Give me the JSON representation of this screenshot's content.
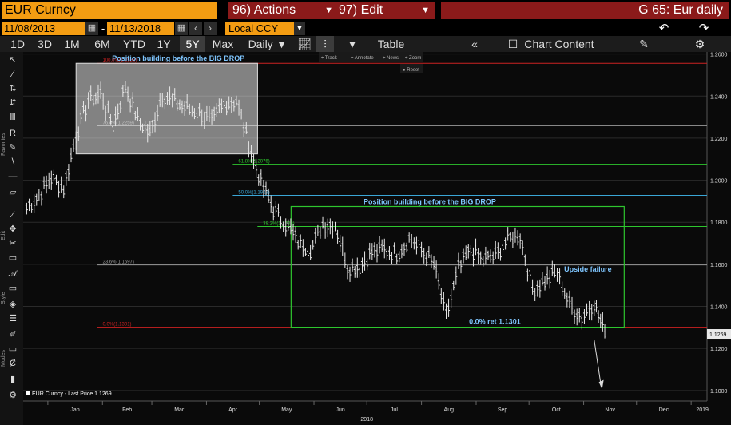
{
  "header": {
    "ticker": "EUR Curncy",
    "actions_label": "96) Actions",
    "edit_label": "97) Edit",
    "title": "G 65: Eur daily"
  },
  "range": {
    "start": "11/08/2013",
    "separator": "-",
    "end": "11/13/2018",
    "currency": "Local CCY"
  },
  "toolbar": {
    "periods": [
      "1D",
      "3D",
      "1M",
      "6M",
      "YTD",
      "1Y",
      "5Y",
      "Max"
    ],
    "selected_period": "5Y",
    "frequency": "Daily",
    "table_label": "Table",
    "chart_content_label": "Chart Content"
  },
  "overlay_toolbar": {
    "items": [
      "Track",
      "Annotate",
      "News",
      "Zoom"
    ],
    "reset_label": "Reset"
  },
  "sidebar_sections": [
    "Favorites",
    "Edit",
    "Style",
    "Modes"
  ],
  "legend_label": "EUR Curncy - Last Price 1.1269",
  "colors": {
    "background": "#0a0a0a",
    "accent_orange": "#f39c12",
    "action_red": "#8b1a1a",
    "annotation_blue": "#7fc6ff",
    "fib_green": "#2ec62e",
    "fib_red": "#cc2222",
    "fib_blue": "#3aa6d6"
  },
  "chart_data": {
    "type": "line",
    "title": "",
    "xlabel": "2018",
    "ylabel": "",
    "x_ticks": [
      "Jan",
      "Feb",
      "Mar",
      "Apr",
      "May",
      "Jun",
      "Jul",
      "Aug",
      "Sep",
      "Oct",
      "Nov",
      "Dec",
      "2019"
    ],
    "y_ticks": [
      1.26,
      1.24,
      1.22,
      1.2,
      1.18,
      1.16,
      1.14,
      1.12,
      1.1
    ],
    "ylim": [
      1.095,
      1.261
    ],
    "series": [
      {
        "name": "EUR Curncy - Last Price",
        "points": [
          [
            "2017-12-20",
            1.187
          ],
          [
            "2017-12-27",
            1.193
          ],
          [
            "2018-01-03",
            1.201
          ],
          [
            "2018-01-10",
            1.196
          ],
          [
            "2018-01-17",
            1.221
          ],
          [
            "2018-01-24",
            1.238
          ],
          [
            "2018-01-31",
            1.241
          ],
          [
            "2018-02-07",
            1.226
          ],
          [
            "2018-02-14",
            1.245
          ],
          [
            "2018-02-21",
            1.229
          ],
          [
            "2018-02-28",
            1.222
          ],
          [
            "2018-03-07",
            1.241
          ],
          [
            "2018-03-14",
            1.237
          ],
          [
            "2018-03-21",
            1.234
          ],
          [
            "2018-03-28",
            1.232
          ],
          [
            "2018-04-04",
            1.228
          ],
          [
            "2018-04-11",
            1.236
          ],
          [
            "2018-04-18",
            1.238
          ],
          [
            "2018-04-25",
            1.217
          ],
          [
            "2018-05-02",
            1.199
          ],
          [
            "2018-05-09",
            1.186
          ],
          [
            "2018-05-16",
            1.179
          ],
          [
            "2018-05-23",
            1.171
          ],
          [
            "2018-05-30",
            1.167
          ],
          [
            "2018-06-06",
            1.179
          ],
          [
            "2018-06-13",
            1.179
          ],
          [
            "2018-06-20",
            1.159
          ],
          [
            "2018-06-27",
            1.159
          ],
          [
            "2018-07-04",
            1.166
          ],
          [
            "2018-07-11",
            1.167
          ],
          [
            "2018-07-18",
            1.165
          ],
          [
            "2018-07-25",
            1.172
          ],
          [
            "2018-08-01",
            1.167
          ],
          [
            "2018-08-08",
            1.16
          ],
          [
            "2018-08-15",
            1.135
          ],
          [
            "2018-08-22",
            1.158
          ],
          [
            "2018-08-29",
            1.167
          ],
          [
            "2018-09-05",
            1.162
          ],
          [
            "2018-09-12",
            1.164
          ],
          [
            "2018-09-19",
            1.172
          ],
          [
            "2018-09-26",
            1.174
          ],
          [
            "2018-10-03",
            1.148
          ],
          [
            "2018-10-10",
            1.152
          ],
          [
            "2018-10-17",
            1.156
          ],
          [
            "2018-10-24",
            1.141
          ],
          [
            "2018-10-31",
            1.135
          ],
          [
            "2018-11-07",
            1.142
          ],
          [
            "2018-11-13",
            1.1269
          ]
        ]
      }
    ],
    "fib_levels": [
      {
        "label": "100.0%(1.2556)",
        "value": 1.2556,
        "color": "red"
      },
      {
        "label": "76.4%(1.2259)",
        "value": 1.2259,
        "color": "white"
      },
      {
        "label": "61.8%(1.2076)",
        "value": 1.2076,
        "color": "green"
      },
      {
        "label": "50.0%(1.1928)",
        "value": 1.1928,
        "color": "blue"
      },
      {
        "label": "38.2%(1.1780)",
        "value": 1.178,
        "color": "green"
      },
      {
        "label": "23.6%(1.1597)",
        "value": 1.1597,
        "color": "white"
      },
      {
        "label": "0.0%(1.1301)",
        "value": 1.1301,
        "color": "red"
      }
    ],
    "annotations": {
      "box1_label": "Position building before the BIG DROP",
      "box2_label": "Position building before the BIG DROP",
      "upside_label": "Upside failure",
      "ret_label": "0.0% ret 1.1301"
    },
    "last_price_label": "1.1269",
    "grid": true
  }
}
